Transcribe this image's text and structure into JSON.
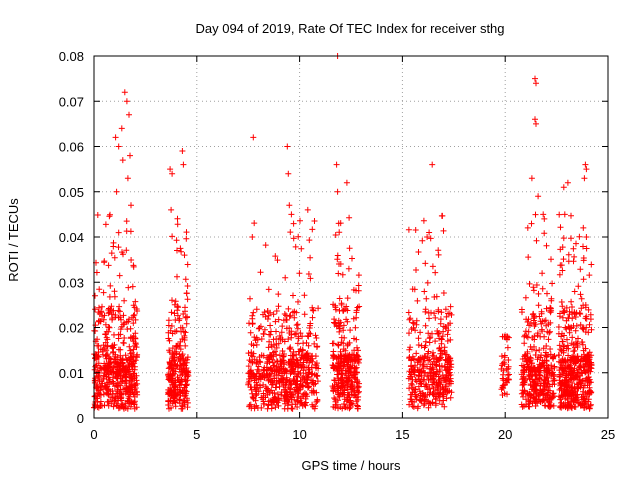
{
  "chart_data": {
    "type": "scatter",
    "title": "Day 094 of 2019, Rate Of TEC Index for receiver sthg",
    "xlabel": "GPS time / hours",
    "ylabel": "ROTI / TECUs",
    "xlim": [
      0,
      25
    ],
    "ylim": [
      0,
      0.08
    ],
    "xticks": [
      0,
      5,
      10,
      15,
      20,
      25
    ],
    "xtick_labels": [
      "0",
      "5",
      "10",
      "15",
      "20",
      "25"
    ],
    "yticks": [
      0,
      0.01,
      0.02,
      0.03,
      0.04,
      0.05,
      0.06,
      0.07,
      0.08
    ],
    "ytick_labels": [
      "0",
      "0.01",
      "0.02",
      "0.03",
      "0.04",
      "0.05",
      "0.06",
      "0.07",
      "0.08"
    ],
    "grid": true,
    "marker": "+",
    "color": "#ff0000",
    "series": [
      {
        "name": "ROTI",
        "clusters": [
          {
            "x_range": [
              0.0,
              2.1
            ],
            "count": 520,
            "peak": 0.072,
            "high_points": [
              [
                0.05,
                0.027
              ],
              [
                1.05,
                0.062
              ],
              [
                1.2,
                0.06
              ],
              [
                1.35,
                0.064
              ],
              [
                1.5,
                0.072
              ],
              [
                1.6,
                0.07
              ],
              [
                1.7,
                0.067
              ],
              [
                1.75,
                0.058
              ],
              [
                1.8,
                0.047
              ],
              [
                1.1,
                0.05
              ],
              [
                1.65,
                0.053
              ],
              [
                1.4,
                0.057
              ]
            ]
          },
          {
            "x_range": [
              3.6,
              4.6
            ],
            "count": 260,
            "peak": 0.059,
            "high_points": [
              [
                3.7,
                0.055
              ],
              [
                3.8,
                0.054
              ],
              [
                4.3,
                0.059
              ],
              [
                4.35,
                0.056
              ],
              [
                3.75,
                0.046
              ],
              [
                4.4,
                0.036
              ]
            ]
          },
          {
            "x_range": [
              7.5,
              10.9
            ],
            "count": 620,
            "peak": 0.062,
            "high_points": [
              [
                7.75,
                0.062
              ],
              [
                9.4,
                0.06
              ],
              [
                9.45,
                0.054
              ],
              [
                10.4,
                0.046
              ],
              [
                9.6,
                0.045
              ],
              [
                9.5,
                0.047
              ],
              [
                7.7,
                0.04
              ]
            ]
          },
          {
            "x_range": [
              11.6,
              12.9
            ],
            "count": 330,
            "peak": 0.08,
            "high_points": [
              [
                11.85,
                0.08
              ],
              [
                11.8,
                0.056
              ],
              [
                11.85,
                0.05
              ],
              [
                12.3,
                0.052
              ],
              [
                11.9,
                0.043
              ]
            ]
          },
          {
            "x_range": [
              15.3,
              17.4
            ],
            "count": 380,
            "peak": 0.056,
            "high_points": [
              [
                16.3,
                0.041
              ],
              [
                16.45,
                0.056
              ],
              [
                16.2,
                0.04
              ]
            ]
          },
          {
            "x_range": [
              19.8,
              20.2
            ],
            "count": 45,
            "peak": 0.018,
            "high_points": [
              [
                19.95,
                0.018
              ]
            ]
          },
          {
            "x_range": [
              20.8,
              22.4
            ],
            "count": 360,
            "peak": 0.075,
            "high_points": [
              [
                21.45,
                0.075
              ],
              [
                21.5,
                0.074
              ],
              [
                21.45,
                0.066
              ],
              [
                21.5,
                0.065
              ],
              [
                21.3,
                0.053
              ],
              [
                21.1,
                0.042
              ],
              [
                21.85,
                0.045
              ],
              [
                21.9,
                0.044
              ],
              [
                21.6,
                0.049
              ]
            ]
          },
          {
            "x_range": [
              22.6,
              24.2
            ],
            "count": 470,
            "peak": 0.056,
            "high_points": [
              [
                22.85,
                0.051
              ],
              [
                23.05,
                0.052
              ],
              [
                22.9,
                0.045
              ],
              [
                23.9,
                0.056
              ],
              [
                23.95,
                0.055
              ],
              [
                23.85,
                0.053
              ],
              [
                23.8,
                0.042
              ],
              [
                23.95,
                0.04
              ]
            ]
          }
        ]
      }
    ]
  }
}
